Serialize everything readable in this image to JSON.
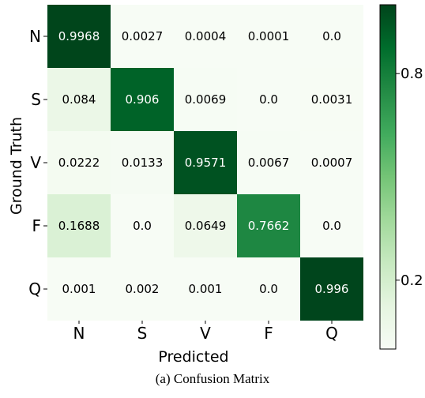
{
  "chart_data": {
    "type": "heatmap",
    "xlabel": "Predicted",
    "ylabel": "Ground Truth",
    "x_categories": [
      "N",
      "S",
      "V",
      "F",
      "Q"
    ],
    "y_categories": [
      "N",
      "S",
      "V",
      "F",
      "Q"
    ],
    "values": [
      [
        "0.9968",
        "0.0027",
        "0.0004",
        "0.0001",
        "0.0"
      ],
      [
        "0.084",
        "0.906",
        "0.0069",
        "0.0",
        "0.0031"
      ],
      [
        "0.0222",
        "0.0133",
        "0.9571",
        "0.0067",
        "0.0007"
      ],
      [
        "0.1688",
        "0.0",
        "0.0649",
        "0.7662",
        "0.0"
      ],
      [
        "0.001",
        "0.002",
        "0.001",
        "0.0",
        "0.996"
      ]
    ],
    "colorbar": {
      "colormap": "Greens",
      "range": [
        0,
        1
      ],
      "ticks": [
        0.2,
        0.8
      ],
      "tick_labels": [
        "0.2",
        "0.8"
      ]
    },
    "colors": {
      "low": "#f7fcf5",
      "high": "#00441b"
    }
  },
  "caption": "(a) Confusion Matrix"
}
